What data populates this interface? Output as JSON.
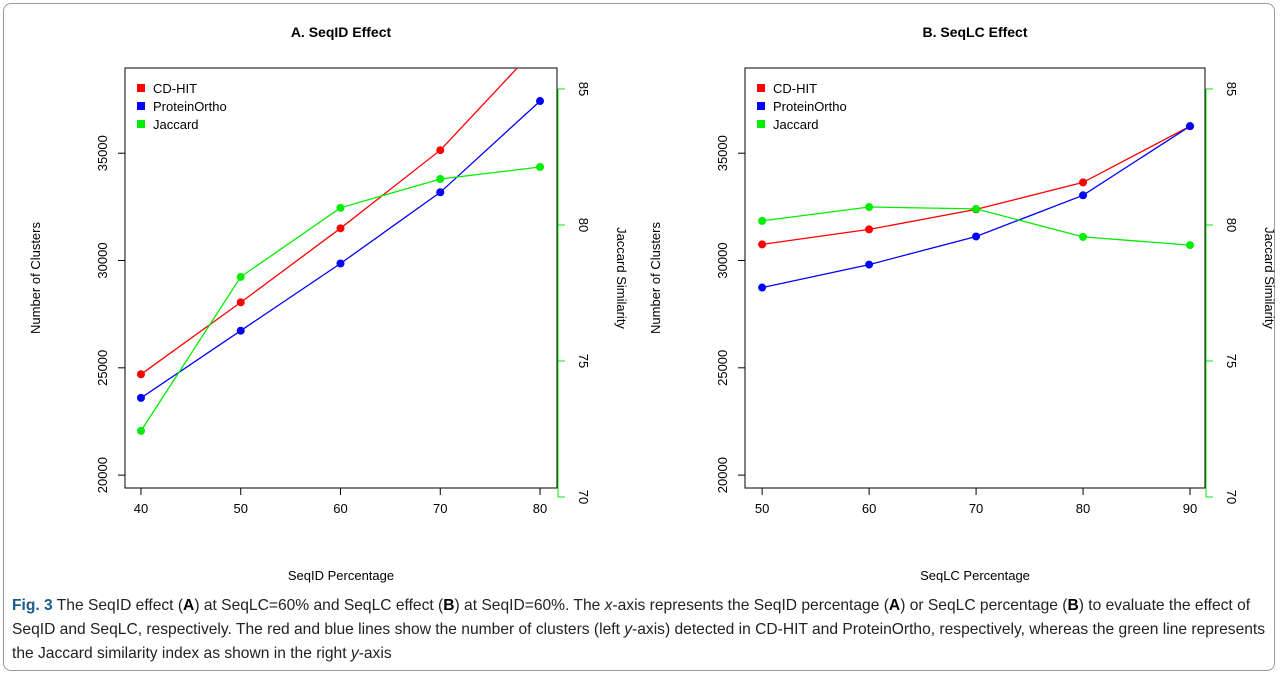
{
  "chart_data": [
    {
      "type": "line",
      "title": "A. SeqID Effect",
      "xlabel": "SeqID Percentage",
      "ylabel": "Number of Clusters",
      "y2label": "Jaccard Similarity",
      "x": [
        40,
        50,
        60,
        70,
        80
      ],
      "xlim": [
        38.4,
        81.7
      ],
      "xticks": [
        40,
        50,
        60,
        70,
        80
      ],
      "ylim": [
        19400,
        38970
      ],
      "yticks": [
        20000,
        25000,
        30000,
        35000
      ],
      "y2lim": [
        70.33,
        85.77
      ],
      "y2ticks": [
        70,
        75,
        80,
        85
      ],
      "legend": "topleft",
      "series": [
        {
          "name": "CD-HIT",
          "color": "#ff0000",
          "values": [
            24700,
            28050,
            31500,
            35140,
            40100
          ]
        },
        {
          "name": "ProteinOrtho",
          "color": "#0000ff",
          "values": [
            23600,
            26730,
            29860,
            33180,
            37430
          ]
        },
        {
          "name": "Jaccard",
          "color": "#00ee00",
          "axis": "y2",
          "values": [
            72.43,
            78.09,
            80.63,
            81.69,
            82.13
          ]
        }
      ]
    },
    {
      "type": "line",
      "title": "B. SeqLC Effect",
      "xlabel": "SeqLC Percentage",
      "ylabel": "Number of Clusters",
      "y2label": "Jaccard Similarity",
      "x": [
        50,
        60,
        70,
        80,
        90
      ],
      "xlim": [
        48.4,
        91.4
      ],
      "xticks": [
        50,
        60,
        70,
        80,
        90
      ],
      "ylim": [
        19400,
        38970
      ],
      "yticks": [
        20000,
        25000,
        30000,
        35000
      ],
      "y2lim": [
        70.33,
        85.77
      ],
      "y2ticks": [
        70,
        75,
        80,
        85
      ],
      "legend": "topleft",
      "series": [
        {
          "name": "CD-HIT",
          "color": "#ff0000",
          "values": [
            30750,
            31450,
            32380,
            33640,
            36260
          ]
        },
        {
          "name": "ProteinOrtho",
          "color": "#0000ff",
          "values": [
            28740,
            29810,
            31120,
            33040,
            36260
          ]
        },
        {
          "name": "Jaccard",
          "color": "#00ee00",
          "axis": "y2",
          "values": [
            80.15,
            80.66,
            80.59,
            79.56,
            79.26
          ]
        }
      ]
    }
  ],
  "caption": [
    "Fig. 3",
    "  The SeqID effect (",
    "A",
    ") at SeqLC=60% and SeqLC effect (",
    "B",
    ") at SeqID=60%. The ",
    "x",
    "-axis represents the SeqID percentage (",
    "A",
    ") or SeqLC percentage (",
    "B",
    ") to evaluate the effect of SeqID and SeqLC, respectively. The red and blue lines show the number of clusters (left ",
    "y",
    "-axis) detected in CD-HIT and ProteinOrtho, respectively, whereas the green line represents the Jaccard similarity index as shown in the right ",
    "y",
    "-axis"
  ]
}
